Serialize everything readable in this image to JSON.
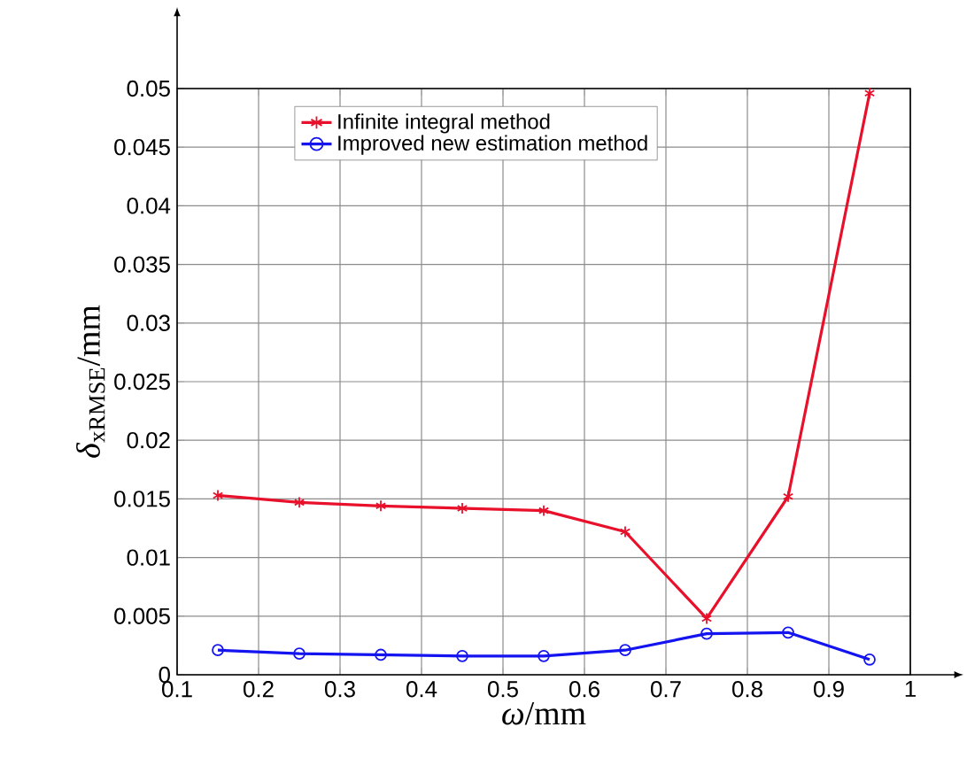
{
  "chart_data": {
    "type": "line",
    "xlabel": "*ω*/mm",
    "ylabel": "*δ*$_{xRMSE}$/mm",
    "x": [
      0.15,
      0.25,
      0.35,
      0.45,
      0.55,
      0.65,
      0.75,
      0.85,
      0.95
    ],
    "series": [
      {
        "name": "Infinite integral method",
        "color": "#e8102a",
        "marker": "cross",
        "values": [
          0.0153,
          0.0147,
          0.0144,
          0.0142,
          0.014,
          0.0122,
          0.0048,
          0.0152,
          0.0496
        ]
      },
      {
        "name": "Improved new estimation method",
        "color": "#1414f0",
        "marker": "circle",
        "values": [
          0.0021,
          0.0018,
          0.0017,
          0.0016,
          0.0016,
          0.0021,
          0.0035,
          0.0036,
          0.0013
        ]
      }
    ],
    "xlim": [
      0.1,
      1
    ],
    "ylim": [
      0,
      0.05
    ],
    "xticks": [
      0.1,
      0.2,
      0.3,
      0.4,
      0.5,
      0.6,
      0.7,
      0.8,
      0.9,
      1
    ],
    "yticks": [
      0,
      0.005,
      0.01,
      0.015,
      0.02,
      0.025,
      0.03,
      0.035,
      0.04,
      0.045,
      0.05
    ],
    "grid": true,
    "legend": "top",
    "line_style": "solid"
  }
}
